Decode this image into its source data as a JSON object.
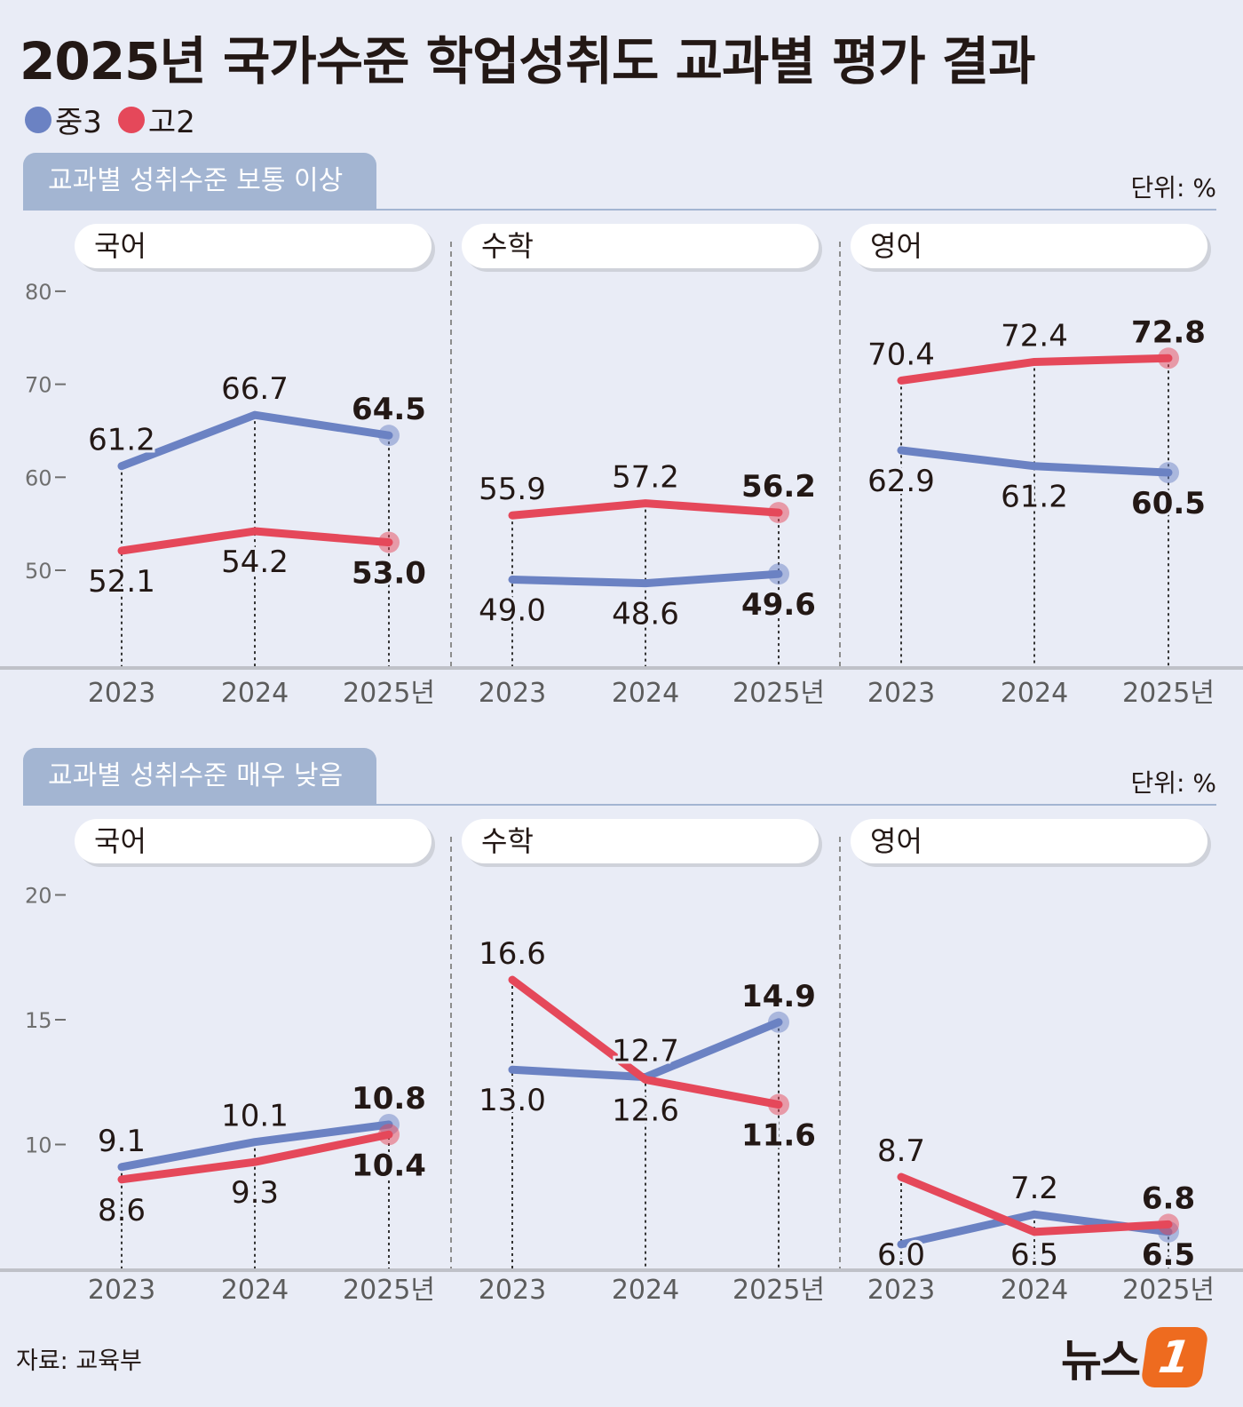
{
  "title": "2025년 국가수준 학업성취도 교과별 평가 결과",
  "legend": [
    {
      "label": "중3",
      "color": "#6b82c3"
    },
    {
      "label": "고2",
      "color": "#e5485a"
    }
  ],
  "unit": "단위: %",
  "source": "자료: 교육부",
  "logo": {
    "text": "뉴스",
    "badge": "1"
  },
  "x_labels": [
    "2023",
    "2024",
    "2025년"
  ],
  "chart_data": [
    {
      "type": "line",
      "title": "교과별 성취수준 보통 이상",
      "ylim": [
        50,
        80
      ],
      "yticks": [
        50,
        60,
        70,
        80
      ],
      "x": [
        "2023",
        "2024",
        "2025년"
      ],
      "panels": [
        {
          "subject": "국어",
          "series": [
            {
              "name": "중3",
              "values": [
                61.2,
                66.7,
                64.5
              ]
            },
            {
              "name": "고2",
              "values": [
                52.1,
                54.2,
                53.0
              ]
            }
          ]
        },
        {
          "subject": "수학",
          "series": [
            {
              "name": "중3",
              "values": [
                49.0,
                48.6,
                49.6
              ]
            },
            {
              "name": "고2",
              "values": [
                55.9,
                57.2,
                56.2
              ]
            }
          ]
        },
        {
          "subject": "영어",
          "series": [
            {
              "name": "중3",
              "values": [
                62.9,
                61.2,
                60.5
              ]
            },
            {
              "name": "고2",
              "values": [
                70.4,
                72.4,
                72.8
              ]
            }
          ]
        }
      ]
    },
    {
      "type": "line",
      "title": "교과별 성취수준 매우 낮음",
      "ylim": [
        5,
        20
      ],
      "yticks": [
        10,
        15,
        20
      ],
      "x": [
        "2023",
        "2024",
        "2025년"
      ],
      "panels": [
        {
          "subject": "국어",
          "series": [
            {
              "name": "중3",
              "values": [
                9.1,
                10.1,
                10.8
              ]
            },
            {
              "name": "고2",
              "values": [
                8.6,
                9.3,
                10.4
              ]
            }
          ]
        },
        {
          "subject": "수학",
          "series": [
            {
              "name": "중3",
              "values": [
                13.0,
                12.7,
                14.9
              ]
            },
            {
              "name": "고2",
              "values": [
                16.6,
                12.6,
                11.6
              ]
            }
          ]
        },
        {
          "subject": "영어",
          "series": [
            {
              "name": "중3",
              "values": [
                6.0,
                7.2,
                6.5
              ]
            },
            {
              "name": "고2",
              "values": [
                8.7,
                6.5,
                6.8
              ]
            }
          ]
        }
      ]
    }
  ]
}
